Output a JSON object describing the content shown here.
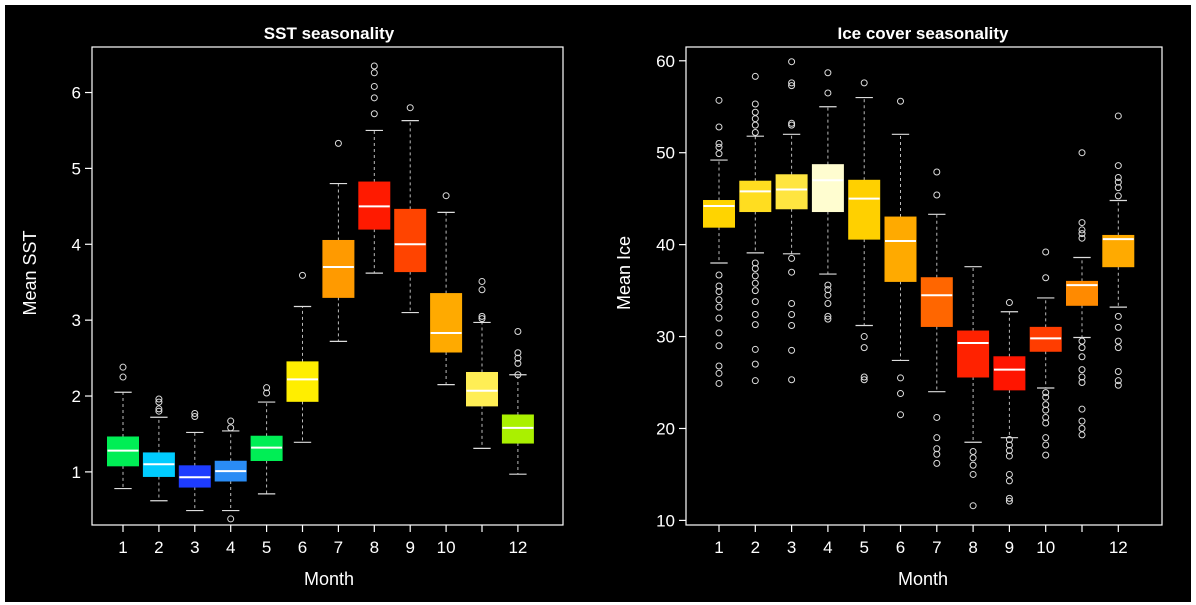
{
  "background": "#000000",
  "chart_data": [
    {
      "type": "box",
      "title": "SST seasonality",
      "xlabel": "Month",
      "ylabel": "Mean SST",
      "ylim": [
        0.3,
        6.6
      ],
      "yticks": [
        1,
        2,
        3,
        4,
        5,
        6
      ],
      "categories": [
        1,
        2,
        3,
        4,
        5,
        6,
        7,
        8,
        9,
        10,
        11,
        12
      ],
      "xtick_labels": [
        "1",
        "2",
        "3",
        "4",
        "5",
        "6",
        "7",
        "8",
        "9",
        "10",
        "",
        "12"
      ],
      "boxes": [
        {
          "month": 1,
          "color": "#00ee55",
          "whislo": 0.78,
          "q1": 1.08,
          "med": 1.28,
          "q3": 1.46,
          "whishi": 2.05,
          "fliers": [
            2.25,
            2.38
          ]
        },
        {
          "month": 2,
          "color": "#00ccff",
          "whislo": 0.62,
          "q1": 0.94,
          "med": 1.1,
          "q3": 1.25,
          "whishi": 1.72,
          "fliers": [
            1.8,
            1.83,
            1.92,
            1.96
          ]
        },
        {
          "month": 3,
          "color": "#1e3cff",
          "whislo": 0.49,
          "q1": 0.8,
          "med": 0.93,
          "q3": 1.08,
          "whishi": 1.52,
          "fliers": [
            1.73,
            1.77
          ]
        },
        {
          "month": 4,
          "color": "#2a8cf5",
          "whislo": 0.49,
          "q1": 0.88,
          "med": 1.01,
          "q3": 1.14,
          "whishi": 1.54,
          "fliers": [
            0.38,
            1.58,
            1.67
          ]
        },
        {
          "month": 5,
          "color": "#00ee55",
          "whislo": 0.71,
          "q1": 1.15,
          "med": 1.32,
          "q3": 1.47,
          "whishi": 1.92,
          "fliers": [
            2.04,
            2.11
          ]
        },
        {
          "month": 6,
          "color": "#ffee00",
          "whislo": 1.39,
          "q1": 1.93,
          "med": 2.22,
          "q3": 2.45,
          "whishi": 3.18,
          "fliers": [
            3.59
          ]
        },
        {
          "month": 7,
          "color": "#ff9a00",
          "whislo": 2.72,
          "q1": 3.3,
          "med": 3.7,
          "q3": 4.05,
          "whishi": 4.8,
          "fliers": [
            5.33
          ]
        },
        {
          "month": 8,
          "color": "#ff1a00",
          "whislo": 3.62,
          "q1": 4.2,
          "med": 4.5,
          "q3": 4.82,
          "whishi": 5.5,
          "fliers": [
            5.72,
            5.93,
            6.08,
            6.26,
            6.35
          ]
        },
        {
          "month": 9,
          "color": "#ff4400",
          "whislo": 3.1,
          "q1": 3.64,
          "med": 4.0,
          "q3": 4.46,
          "whishi": 5.63,
          "fliers": [
            5.8
          ]
        },
        {
          "month": 10,
          "color": "#ffaa00",
          "whislo": 2.15,
          "q1": 2.58,
          "med": 2.83,
          "q3": 3.35,
          "whishi": 4.42,
          "fliers": [
            4.64
          ]
        },
        {
          "month": 11,
          "color": "#ffee55",
          "whislo": 1.31,
          "q1": 1.87,
          "med": 2.07,
          "q3": 2.31,
          "whishi": 2.97,
          "fliers": [
            3.02,
            3.05,
            3.4,
            3.51
          ]
        },
        {
          "month": 12,
          "color": "#aaf000",
          "whislo": 0.97,
          "q1": 1.38,
          "med": 1.58,
          "q3": 1.75,
          "whishi": 2.28,
          "fliers": [
            2.28,
            2.43,
            2.5,
            2.57,
            2.85
          ]
        }
      ]
    },
    {
      "type": "box",
      "title": "Ice cover seasonality",
      "xlabel": "Month",
      "ylabel": "Mean Ice",
      "ylim": [
        9.5,
        61.5
      ],
      "yticks": [
        10,
        20,
        30,
        40,
        50,
        60
      ],
      "categories": [
        1,
        2,
        3,
        4,
        5,
        6,
        7,
        8,
        9,
        10,
        11,
        12
      ],
      "xtick_labels": [
        "1",
        "2",
        "3",
        "4",
        "5",
        "6",
        "7",
        "8",
        "9",
        "10",
        "",
        "12"
      ],
      "boxes": [
        {
          "month": 1,
          "color": "#ffd400",
          "whislo": 38.0,
          "q1": 41.9,
          "med": 44.2,
          "q3": 44.8,
          "whishi": 49.2,
          "fliers": [
            24.9,
            26.0,
            26.8,
            29.0,
            30.4,
            32.0,
            33.2,
            34.0,
            34.9,
            35.5,
            36.7,
            49.9,
            50.6,
            51.0,
            52.8,
            55.7
          ]
        },
        {
          "month": 2,
          "color": "#ffdd20",
          "whislo": 39.1,
          "q1": 43.6,
          "med": 45.8,
          "q3": 46.9,
          "whishi": 51.8,
          "fliers": [
            25.2,
            27.0,
            28.6,
            31.3,
            32.4,
            33.8,
            35.0,
            35.8,
            36.6,
            37.4,
            38.0,
            52.2,
            53.0,
            53.7,
            54.4,
            55.3,
            58.3
          ]
        },
        {
          "month": 3,
          "color": "#ffe540",
          "whislo": 39.0,
          "q1": 43.9,
          "med": 46.0,
          "q3": 47.6,
          "whishi": 52.0,
          "fliers": [
            25.3,
            28.5,
            31.2,
            32.4,
            33.6,
            37.0,
            38.5,
            53.0,
            53.2,
            57.3,
            57.6,
            59.9
          ]
        },
        {
          "month": 4,
          "color": "#fffdd0",
          "whislo": 36.8,
          "q1": 43.6,
          "med": 47.0,
          "q3": 48.7,
          "whishi": 55.0,
          "fliers": [
            31.9,
            32.2,
            33.6,
            34.5,
            35.1,
            35.6,
            56.5,
            58.7
          ]
        },
        {
          "month": 5,
          "color": "#ffd000",
          "whislo": 31.2,
          "q1": 40.6,
          "med": 45.0,
          "q3": 47.0,
          "whishi": 56.0,
          "fliers": [
            25.3,
            25.6,
            28.8,
            30.0,
            57.6
          ]
        },
        {
          "month": 6,
          "color": "#ffaa00",
          "whislo": 27.4,
          "q1": 36.0,
          "med": 40.4,
          "q3": 43.0,
          "whishi": 52.0,
          "fliers": [
            21.5,
            23.8,
            25.5,
            55.6
          ]
        },
        {
          "month": 7,
          "color": "#ff6600",
          "whislo": 24.0,
          "q1": 31.1,
          "med": 34.5,
          "q3": 36.4,
          "whishi": 43.3,
          "fliers": [
            16.2,
            17.2,
            17.8,
            19.0,
            21.2,
            45.4,
            47.9
          ]
        },
        {
          "month": 8,
          "color": "#ff2200",
          "whislo": 18.5,
          "q1": 25.6,
          "med": 29.3,
          "q3": 30.6,
          "whishi": 37.6,
          "fliers": [
            11.6,
            15.0,
            16.0,
            16.8,
            17.5
          ]
        },
        {
          "month": 9,
          "color": "#ff1500",
          "whislo": 19.0,
          "q1": 24.2,
          "med": 26.4,
          "q3": 27.8,
          "whishi": 32.7,
          "fliers": [
            12.1,
            12.4,
            14.3,
            15.0,
            17.0,
            17.6,
            18.2,
            18.8,
            33.7
          ]
        },
        {
          "month": 10,
          "color": "#ff3d00",
          "whislo": 24.4,
          "q1": 28.4,
          "med": 29.8,
          "q3": 31.0,
          "whishi": 34.2,
          "fliers": [
            17.1,
            18.2,
            19.0,
            20.6,
            21.2,
            22.0,
            22.6,
            23.4,
            23.9,
            36.4,
            39.2
          ]
        },
        {
          "month": 11,
          "color": "#ff8a00",
          "whislo": 29.9,
          "q1": 33.4,
          "med": 35.6,
          "q3": 36.0,
          "whishi": 38.6,
          "fliers": [
            19.3,
            20.0,
            20.8,
            22.1,
            25.0,
            25.6,
            26.4,
            27.8,
            28.8,
            29.5,
            40.7,
            41.2,
            41.6,
            42.4,
            50.0
          ]
        },
        {
          "month": 12,
          "color": "#ffaa00",
          "whislo": 33.2,
          "q1": 37.6,
          "med": 40.6,
          "q3": 41.0,
          "whishi": 44.8,
          "fliers": [
            24.7,
            25.2,
            26.2,
            28.8,
            29.5,
            31.0,
            32.2,
            45.3,
            46.2,
            46.8,
            47.3,
            48.6,
            54.0
          ]
        }
      ]
    }
  ]
}
